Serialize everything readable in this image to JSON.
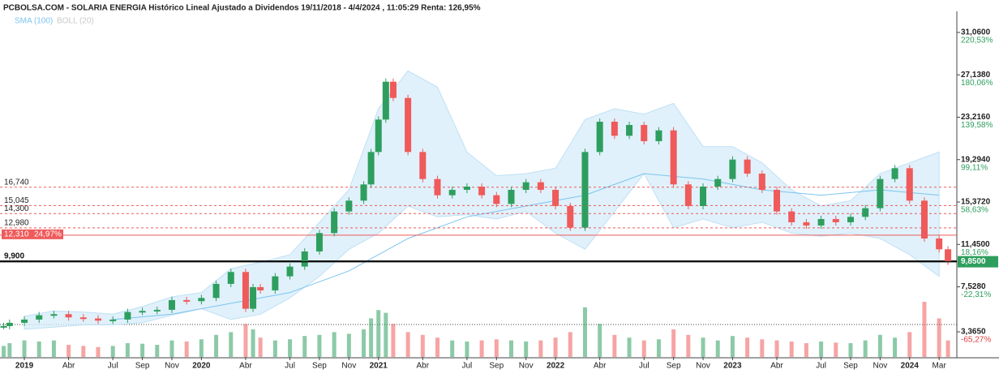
{
  "header": "PCBOLSA.COM - SOLARIA ENERGIA Histórico Lineal Ajustado a Dividendos 19/11/2018 - 4/4/2024 , 11:05:29 Renta: 126,95%",
  "chart_data": {
    "type": "candlestick",
    "legend": [
      {
        "name": "SMA (100)",
        "color": "#7cc4ee"
      },
      {
        "name": "BOLL (20)",
        "color": "#c8c8c8"
      }
    ],
    "x": [
      0.6,
      1,
      2,
      3,
      4,
      5,
      6,
      7,
      8,
      9,
      10,
      11,
      12,
      13,
      14,
      15,
      16,
      17,
      17.5,
      18,
      19,
      20,
      21,
      22,
      23,
      24,
      25,
      25.5,
      26,
      26.5,
      27,
      28,
      29,
      30,
      31,
      32,
      33,
      34,
      35,
      36,
      37,
      38,
      39,
      40,
      41,
      42,
      43,
      44,
      45,
      46,
      47,
      48,
      49,
      50,
      51,
      52,
      53,
      54,
      55,
      56,
      57,
      58,
      59,
      60,
      61,
      62,
      63,
      64,
      64.6
    ],
    "values": [
      3.9,
      4.2,
      4.5,
      4.9,
      5.0,
      4.7,
      4.6,
      4.4,
      4.5,
      5.2,
      5.3,
      5.4,
      6.3,
      6.2,
      6.5,
      7.8,
      8.9,
      5.5,
      7.5,
      7.2,
      8.5,
      9.4,
      10.8,
      12.5,
      14.5,
      15.5,
      17.0,
      20.0,
      23.0,
      26.5,
      25.0,
      20.0,
      17.5,
      16.0,
      16.5,
      16.8,
      16.0,
      15.2,
      16.5,
      17.2,
      16.5,
      15.0,
      13.0,
      20.0,
      22.8,
      21.5,
      22.5,
      21.0,
      22.0,
      17.0,
      15.0,
      16.8,
      17.5,
      19.3,
      18.0,
      16.5,
      14.5,
      13.5,
      13.2,
      13.8,
      13.5,
      14.0,
      14.8,
      17.5,
      18.5,
      15.5,
      12.0,
      11.0,
      9.85
    ],
    "volume": [
      20,
      25,
      30,
      28,
      30,
      22,
      20,
      18,
      20,
      25,
      24,
      22,
      30,
      28,
      32,
      40,
      45,
      60,
      50,
      35,
      30,
      32,
      38,
      40,
      45,
      42,
      50,
      70,
      85,
      80,
      60,
      45,
      40,
      35,
      30,
      28,
      30,
      32,
      30,
      28,
      30,
      35,
      45,
      90,
      60,
      40,
      35,
      30,
      32,
      50,
      40,
      35,
      30,
      38,
      35,
      32,
      30,
      28,
      25,
      28,
      26,
      25,
      30,
      40,
      35,
      45,
      100,
      70,
      30
    ],
    "up_color": "#2e9e5e",
    "down_color": "#ef5a5a",
    "band_x": [
      2,
      4,
      6,
      8,
      10,
      12,
      14,
      16,
      18,
      20,
      22,
      24,
      26,
      28,
      30,
      32,
      34,
      36,
      38,
      40,
      42,
      44,
      46,
      48,
      50,
      52,
      54,
      56,
      58,
      60,
      62,
      64
    ],
    "band_upper": [
      4.8,
      5.3,
      5.2,
      5.0,
      5.7,
      6.6,
      7.0,
      9.2,
      9.8,
      10.5,
      13.5,
      16.5,
      24,
      27.5,
      26.0,
      20.0,
      17.8,
      18.0,
      18.5,
      23.0,
      24.0,
      23.5,
      24.5,
      20.5,
      20.5,
      19.0,
      16.5,
      15.0,
      15.5,
      18.0,
      19.0,
      20.0
    ],
    "band_lower": [
      3.6,
      3.8,
      4.0,
      4.0,
      4.2,
      4.9,
      5.5,
      4.5,
      5.0,
      6.5,
      8.5,
      11.0,
      12.5,
      15.0,
      14.0,
      14.2,
      13.8,
      14.5,
      12.5,
      11.0,
      14.5,
      18.0,
      13.0,
      13.8,
      13.0,
      13.5,
      12.5,
      12.2,
      12.5,
      12.0,
      10.5,
      8.5
    ],
    "sma_x": [
      8,
      12,
      16,
      20,
      24,
      28,
      32,
      36,
      40,
      44,
      48,
      52,
      56,
      60,
      64
    ],
    "sma": [
      4.5,
      5.0,
      6.0,
      7.0,
      9.0,
      12.0,
      14.0,
      15.0,
      16.0,
      18.0,
      17.5,
      16.5,
      16.0,
      16.5,
      16.0
    ],
    "xlim": [
      0.35,
      65.2
    ],
    "ylim": [
      1.04,
      34.06
    ],
    "xticks": [
      {
        "value": 2,
        "label": "2019"
      },
      {
        "value": 5,
        "label": "Abr"
      },
      {
        "value": 8,
        "label": "Jul"
      },
      {
        "value": 10,
        "label": "Sep"
      },
      {
        "value": 12,
        "label": "Nov"
      },
      {
        "value": 14,
        "label": "2020"
      },
      {
        "value": 17,
        "label": "Abr"
      },
      {
        "value": 20,
        "label": "Jul"
      },
      {
        "value": 22,
        "label": "Sep"
      },
      {
        "value": 24,
        "label": "Nov"
      },
      {
        "value": 26,
        "label": "2021"
      },
      {
        "value": 29,
        "label": "Abr"
      },
      {
        "value": 32,
        "label": "Jul"
      },
      {
        "value": 34,
        "label": "Sep"
      },
      {
        "value": 36,
        "label": "Nov"
      },
      {
        "value": 38,
        "label": "2022"
      },
      {
        "value": 41,
        "label": "Abr"
      },
      {
        "value": 44,
        "label": "Jul"
      },
      {
        "value": 46,
        "label": "Sep"
      },
      {
        "value": 48,
        "label": "Nov"
      },
      {
        "value": 50,
        "label": "2023"
      },
      {
        "value": 53,
        "label": "Abr"
      },
      {
        "value": 56,
        "label": "Jul"
      },
      {
        "value": 58,
        "label": "Sep"
      },
      {
        "value": 60,
        "label": "Nov"
      },
      {
        "value": 62,
        "label": "2024"
      },
      {
        "value": 64,
        "label": "Mar"
      }
    ],
    "yticks": [
      {
        "value": 31.06,
        "label": "31,0600"
      },
      {
        "value": 27.138,
        "label": "27,1380"
      },
      {
        "value": 23.216,
        "label": "23,2160"
      },
      {
        "value": 19.294,
        "label": "19,2940"
      },
      {
        "value": 15.372,
        "label": "15,3720"
      },
      {
        "value": 11.45,
        "label": "11,4500"
      },
      {
        "value": 7.528,
        "label": "7,5280"
      },
      {
        "value": 3.365,
        "label": "3,3650"
      }
    ],
    "ytick_pct": [
      "220,53%",
      "180,06%",
      "139,58%",
      "99,11%",
      "58,63%",
      "18,16%",
      "-22,31%",
      "-65,27%"
    ],
    "levels": [
      {
        "value": 16.74,
        "label": "16,740"
      },
      {
        "value": 15.045,
        "label": "15,045"
      },
      {
        "value": 14.3,
        "label": "14,300"
      },
      {
        "value": 12.98,
        "label": "12,980"
      }
    ],
    "support": {
      "value": 12.31,
      "label": "12,310",
      "pct": "24,97%"
    },
    "floor": {
      "value": 9.9,
      "label": "9,900"
    },
    "last": {
      "value": 9.85,
      "label": "9,8500"
    }
  }
}
